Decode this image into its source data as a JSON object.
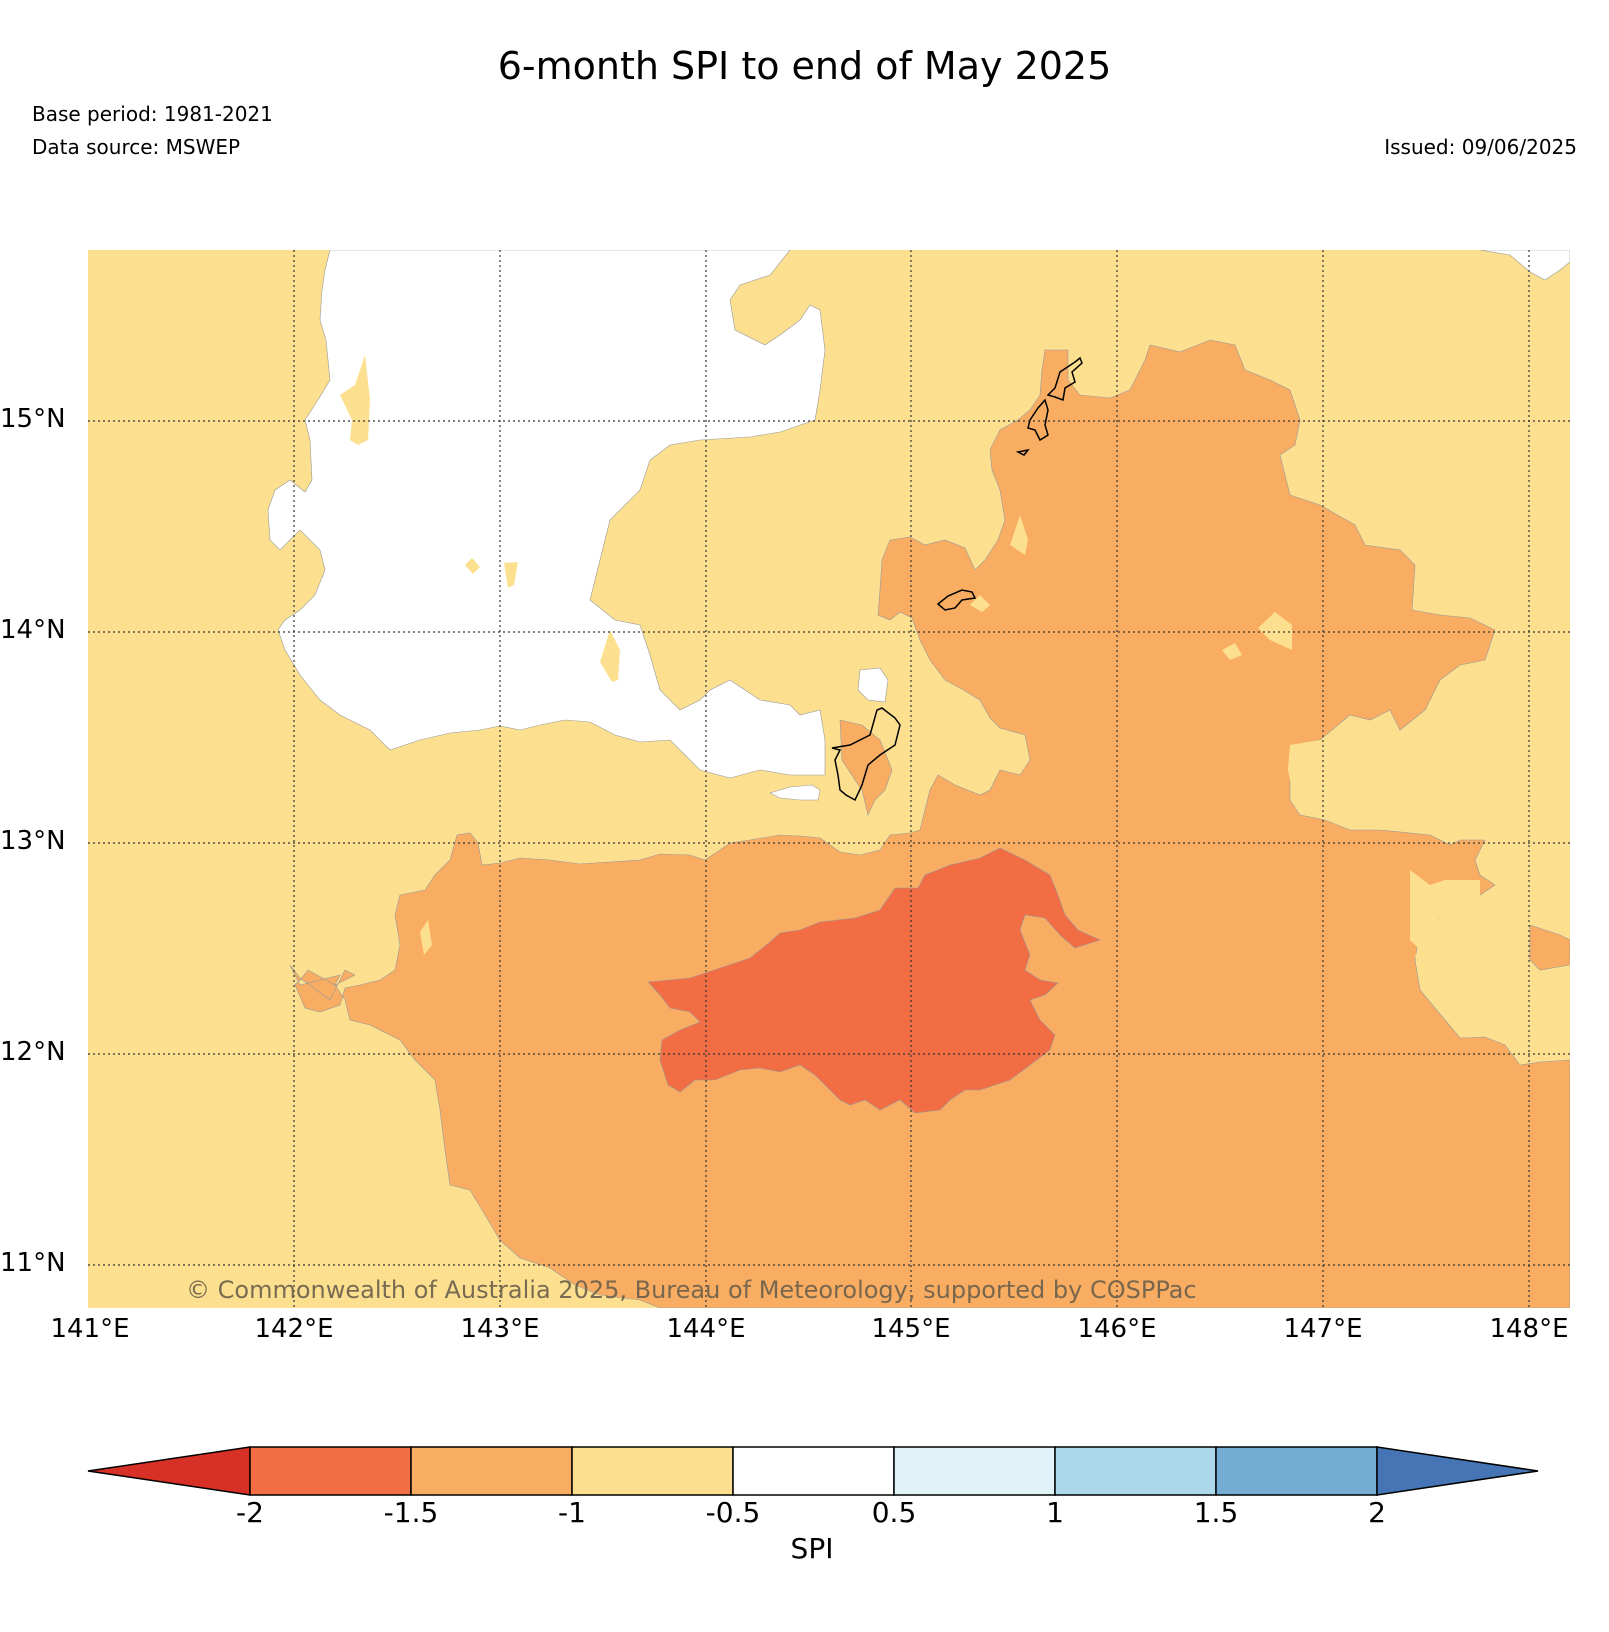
{
  "header": {
    "title": "6-month SPI to end of May 2025",
    "base_period": "Base period: 1981-2021",
    "data_source": "Data source: MSWEP",
    "issued": "Issued: 09/06/2025"
  },
  "map": {
    "lat_labels": [
      "15°N",
      "14°N",
      "13°N",
      "12°N",
      "11°N"
    ],
    "lon_labels": [
      "141°E",
      "142°E",
      "143°E",
      "144°E",
      "145°E",
      "146°E",
      "147°E",
      "148°E"
    ],
    "copyright": "© Commonwealth of Australia 2025, Bureau of Meteorology, supported by COSPPac",
    "region_colors": {
      "white": "#ffffff",
      "light_orange": "#fce08f",
      "orange": "#f9ad62",
      "red_orange": "#f26d44"
    }
  },
  "colorbar": {
    "label": "SPI",
    "ticks": [
      "-2",
      "-1.5",
      "-1",
      "-0.5",
      "0.5",
      "1",
      "1.5",
      "2"
    ],
    "colors": [
      "#d73027",
      "#f26d44",
      "#f9ad62",
      "#fce08f",
      "#ffffff",
      "#e0f3f8",
      "#abd9e9",
      "#74add1",
      "#4575b4"
    ]
  }
}
